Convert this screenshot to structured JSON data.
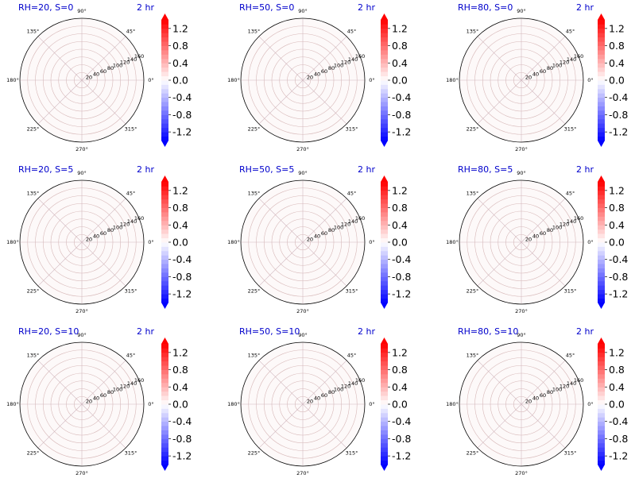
{
  "figure": {
    "rows": [
      {
        "s_label": "S=0"
      },
      {
        "s_label": "S=5"
      },
      {
        "s_label": "S=10"
      }
    ],
    "cols": [
      {
        "rh_label": "RH=20"
      },
      {
        "rh_label": "RH=50"
      },
      {
        "rh_label": "RH=80"
      }
    ],
    "time_label": "2 hr",
    "title_color": "#0000cc"
  },
  "chart_data": [
    {
      "type": "heatmap",
      "title": "RH=20, S=0",
      "time_label": "2 hr",
      "projection": "polar",
      "theta_tick_labels": [
        "0°",
        "45°",
        "90°",
        "135°",
        "180°",
        "225°",
        "270°",
        "315°"
      ],
      "r_tick_labels": [
        "20",
        "40",
        "60",
        "80",
        "100",
        "120",
        "140",
        "160"
      ],
      "rlim": [
        0,
        160
      ],
      "colorbar": {
        "ticks": [
          "-1.2",
          "-0.8",
          "-0.4",
          "0.0",
          "0.4",
          "0.8",
          "1.2"
        ],
        "vmin": -1.4,
        "vmax": 1.4,
        "colormap": "bwr",
        "levels": 28,
        "extend": "both"
      }
    },
    {
      "type": "heatmap",
      "title": "RH=50, S=0",
      "time_label": "2 hr",
      "projection": "polar",
      "theta_tick_labels": [
        "0°",
        "45°",
        "90°",
        "135°",
        "180°",
        "225°",
        "270°",
        "315°"
      ],
      "r_tick_labels": [
        "20",
        "40",
        "60",
        "80",
        "100",
        "120",
        "140",
        "160"
      ],
      "rlim": [
        0,
        160
      ],
      "colorbar": {
        "ticks": [
          "-1.2",
          "-0.8",
          "-0.4",
          "0.0",
          "0.4",
          "0.8",
          "1.2"
        ],
        "vmin": -1.4,
        "vmax": 1.4,
        "colormap": "bwr",
        "levels": 28,
        "extend": "both"
      }
    },
    {
      "type": "heatmap",
      "title": "RH=80, S=0",
      "time_label": "2 hr",
      "projection": "polar",
      "theta_tick_labels": [
        "0°",
        "45°",
        "90°",
        "135°",
        "180°",
        "225°",
        "270°",
        "315°"
      ],
      "r_tick_labels": [
        "20",
        "40",
        "60",
        "80",
        "100",
        "120",
        "140",
        "160"
      ],
      "rlim": [
        0,
        160
      ],
      "colorbar": {
        "ticks": [
          "-1.2",
          "-0.8",
          "-0.4",
          "0.0",
          "0.4",
          "0.8",
          "1.2"
        ],
        "vmin": -1.4,
        "vmax": 1.4,
        "colormap": "bwr",
        "levels": 28,
        "extend": "both"
      }
    },
    {
      "type": "heatmap",
      "title": "RH=20, S=5",
      "time_label": "2 hr",
      "projection": "polar",
      "theta_tick_labels": [
        "0°",
        "45°",
        "90°",
        "135°",
        "180°",
        "225°",
        "270°",
        "315°"
      ],
      "r_tick_labels": [
        "20",
        "40",
        "60",
        "80",
        "100",
        "120",
        "140",
        "160"
      ],
      "rlim": [
        0,
        160
      ],
      "colorbar": {
        "ticks": [
          "-1.2",
          "-0.8",
          "-0.4",
          "0.0",
          "0.4",
          "0.8",
          "1.2"
        ],
        "vmin": -1.4,
        "vmax": 1.4,
        "colormap": "bwr",
        "levels": 28,
        "extend": "both"
      }
    },
    {
      "type": "heatmap",
      "title": "RH=50, S=5",
      "time_label": "2 hr",
      "projection": "polar",
      "theta_tick_labels": [
        "0°",
        "45°",
        "90°",
        "135°",
        "180°",
        "225°",
        "270°",
        "315°"
      ],
      "r_tick_labels": [
        "20",
        "40",
        "60",
        "80",
        "100",
        "120",
        "140",
        "160"
      ],
      "rlim": [
        0,
        160
      ],
      "colorbar": {
        "ticks": [
          "-1.2",
          "-0.8",
          "-0.4",
          "0.0",
          "0.4",
          "0.8",
          "1.2"
        ],
        "vmin": -1.4,
        "vmax": 1.4,
        "colormap": "bwr",
        "levels": 28,
        "extend": "both"
      }
    },
    {
      "type": "heatmap",
      "title": "RH=80, S=5",
      "time_label": "2 hr",
      "projection": "polar",
      "theta_tick_labels": [
        "0°",
        "45°",
        "90°",
        "135°",
        "180°",
        "225°",
        "270°",
        "315°"
      ],
      "r_tick_labels": [
        "20",
        "40",
        "60",
        "80",
        "100",
        "120",
        "140",
        "160"
      ],
      "rlim": [
        0,
        160
      ],
      "colorbar": {
        "ticks": [
          "-1.2",
          "-0.8",
          "-0.4",
          "0.0",
          "0.4",
          "0.8",
          "1.2"
        ],
        "vmin": -1.4,
        "vmax": 1.4,
        "colormap": "bwr",
        "levels": 28,
        "extend": "both"
      }
    },
    {
      "type": "heatmap",
      "title": "RH=20, S=10",
      "time_label": "2 hr",
      "projection": "polar",
      "theta_tick_labels": [
        "0°",
        "45°",
        "90°",
        "135°",
        "180°",
        "225°",
        "270°",
        "315°"
      ],
      "r_tick_labels": [
        "20",
        "40",
        "60",
        "80",
        "100",
        "120",
        "140",
        "160"
      ],
      "rlim": [
        0,
        160
      ],
      "colorbar": {
        "ticks": [
          "-1.2",
          "-0.8",
          "-0.4",
          "0.0",
          "0.4",
          "0.8",
          "1.2"
        ],
        "vmin": -1.4,
        "vmax": 1.4,
        "colormap": "bwr",
        "levels": 28,
        "extend": "both"
      }
    },
    {
      "type": "heatmap",
      "title": "RH=50, S=10",
      "time_label": "2 hr",
      "projection": "polar",
      "theta_tick_labels": [
        "0°",
        "45°",
        "90°",
        "135°",
        "180°",
        "225°",
        "270°",
        "315°"
      ],
      "r_tick_labels": [
        "20",
        "40",
        "60",
        "80",
        "100",
        "120",
        "140",
        "160"
      ],
      "rlim": [
        0,
        160
      ],
      "colorbar": {
        "ticks": [
          "-1.2",
          "-0.8",
          "-0.4",
          "0.0",
          "0.4",
          "0.8",
          "1.2"
        ],
        "vmin": -1.4,
        "vmax": 1.4,
        "colormap": "bwr",
        "levels": 28,
        "extend": "both"
      }
    },
    {
      "type": "heatmap",
      "title": "RH=80, S=10",
      "time_label": "2 hr",
      "projection": "polar",
      "theta_tick_labels": [
        "0°",
        "45°",
        "90°",
        "135°",
        "180°",
        "225°",
        "270°",
        "315°"
      ],
      "r_tick_labels": [
        "20",
        "40",
        "60",
        "80",
        "100",
        "120",
        "140",
        "160"
      ],
      "rlim": [
        0,
        160
      ],
      "colorbar": {
        "ticks": [
          "-1.2",
          "-0.8",
          "-0.4",
          "0.0",
          "0.4",
          "0.8",
          "1.2"
        ],
        "vmin": -1.4,
        "vmax": 1.4,
        "colormap": "bwr",
        "levels": 28,
        "extend": "both"
      }
    }
  ]
}
